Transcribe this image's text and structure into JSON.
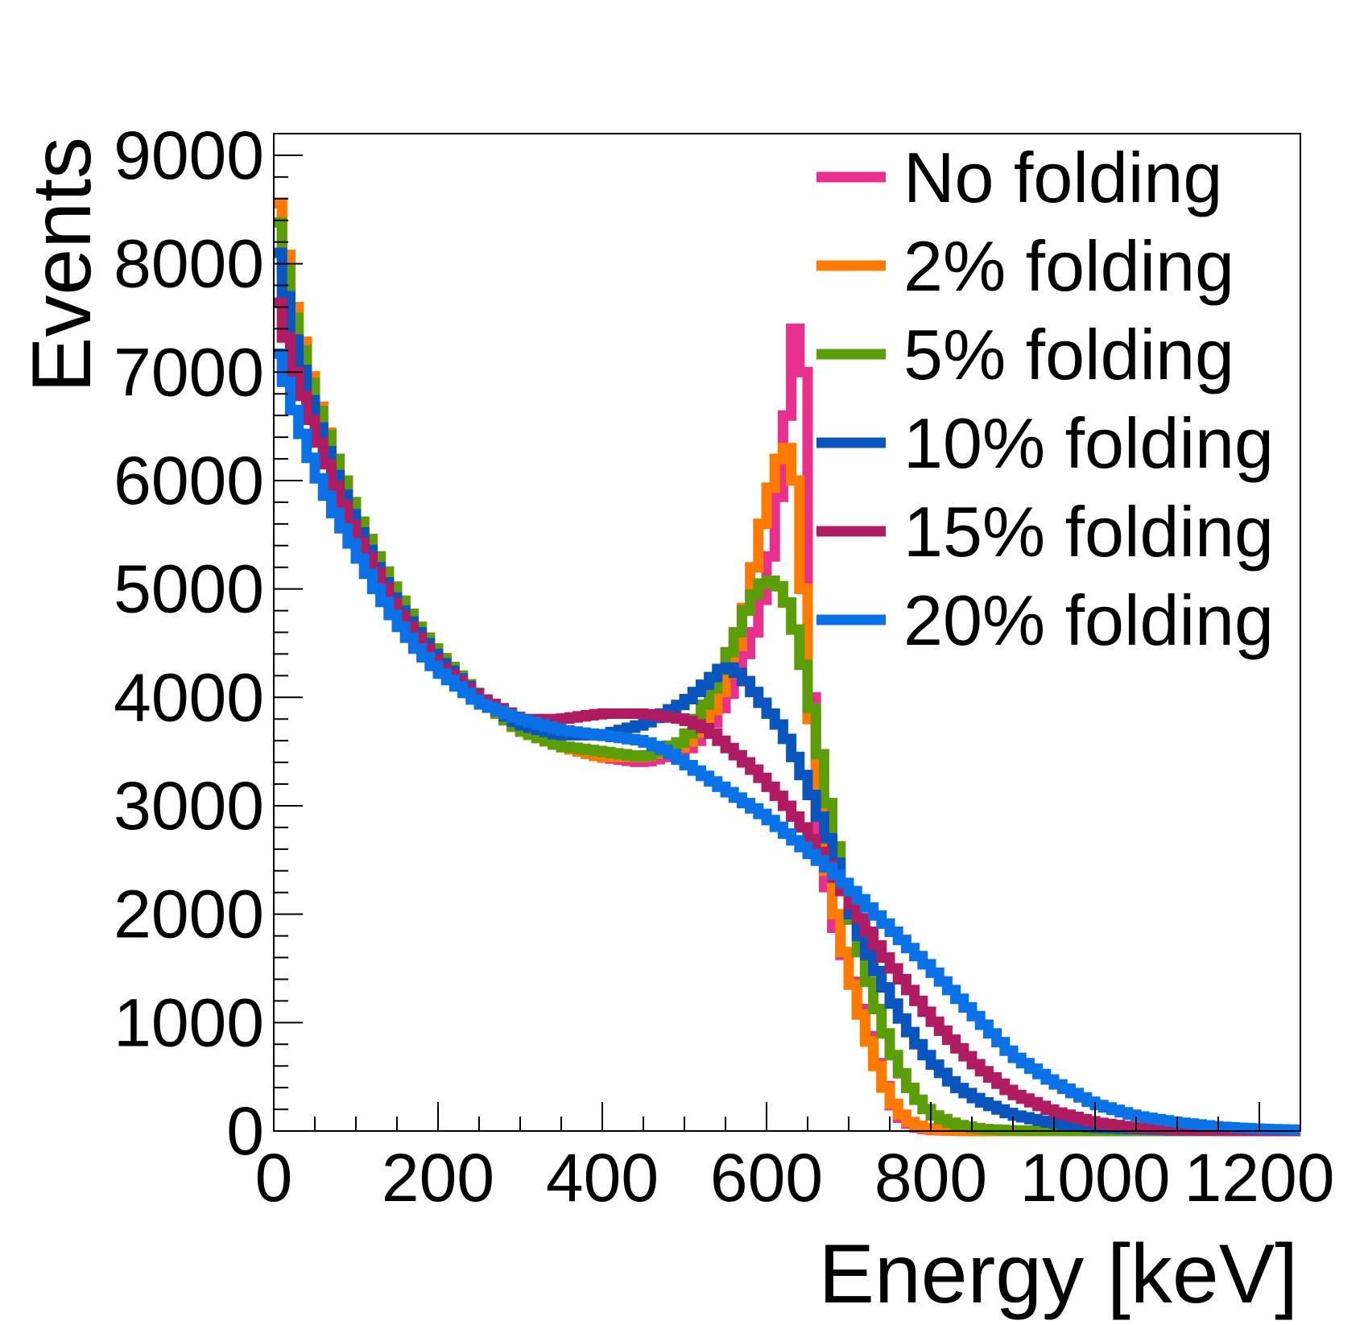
{
  "chart_data": {
    "type": "line",
    "xlabel": "Energy [keV]",
    "ylabel": "Events",
    "xlim": [
      0,
      1250
    ],
    "ylim": [
      0,
      9200
    ],
    "x_ticks": [
      0,
      200,
      400,
      600,
      800,
      1000,
      1200
    ],
    "x_tick_labels": [
      "0",
      "200",
      "400",
      "600",
      "800",
      "1000",
      "1200"
    ],
    "y_ticks": [
      0,
      1000,
      2000,
      3000,
      4000,
      5000,
      6000,
      7000,
      8000,
      9000
    ],
    "y_tick_labels": [
      "0",
      "1000",
      "2000",
      "3000",
      "4000",
      "5000",
      "6000",
      "7000",
      "8000",
      "9000"
    ],
    "grid": false,
    "legend_position": "top-right",
    "series": [
      {
        "name": "No folding",
        "color": "#e8308e",
        "x": [
          0,
          25,
          50,
          75,
          100,
          125,
          150,
          175,
          200,
          250,
          300,
          350,
          400,
          450,
          500,
          530,
          560,
          590,
          610,
          620,
          630,
          635,
          640,
          645,
          650,
          660,
          680,
          700,
          720,
          740,
          760,
          780,
          800,
          850,
          900,
          1000,
          1100,
          1250
        ],
        "values": [
          8800,
          7600,
          6800,
          6200,
          5700,
          5300,
          4950,
          4650,
          4400,
          4000,
          3700,
          3550,
          3450,
          3400,
          3500,
          3700,
          4100,
          4700,
          5500,
          6200,
          7000,
          7400,
          7700,
          7000,
          5000,
          3000,
          2000,
          1500,
          1000,
          500,
          150,
          40,
          10,
          0,
          0,
          0,
          0,
          0
        ]
      },
      {
        "name": "2% folding",
        "color": "#ff7a00",
        "x": [
          0,
          25,
          50,
          75,
          100,
          125,
          150,
          175,
          200,
          250,
          300,
          350,
          400,
          450,
          500,
          530,
          560,
          580,
          600,
          615,
          625,
          635,
          645,
          655,
          670,
          690,
          710,
          730,
          750,
          770,
          790,
          810,
          850,
          900,
          1000,
          1250
        ],
        "values": [
          8800,
          7600,
          6800,
          6200,
          5700,
          5300,
          4950,
          4650,
          4400,
          4000,
          3700,
          3550,
          3450,
          3450,
          3550,
          3800,
          4300,
          5000,
          5800,
          6200,
          6300,
          6000,
          5000,
          3800,
          2600,
          1800,
          1200,
          700,
          300,
          100,
          30,
          10,
          0,
          0,
          0,
          0
        ]
      },
      {
        "name": "5% folding",
        "color": "#5c9e0a",
        "x": [
          0,
          25,
          50,
          75,
          100,
          125,
          150,
          175,
          200,
          250,
          300,
          350,
          400,
          450,
          500,
          530,
          560,
          580,
          600,
          620,
          640,
          660,
          680,
          700,
          720,
          740,
          760,
          780,
          800,
          830,
          860,
          900,
          1000,
          1250
        ],
        "values": [
          8600,
          7500,
          6750,
          6200,
          5700,
          5300,
          4950,
          4650,
          4400,
          4000,
          3700,
          3550,
          3500,
          3450,
          3600,
          4000,
          4500,
          4900,
          5100,
          5000,
          4500,
          3700,
          2800,
          2100,
          1500,
          1000,
          600,
          330,
          160,
          60,
          20,
          5,
          0,
          0
        ]
      },
      {
        "name": "10% folding",
        "color": "#0a55be",
        "x": [
          0,
          25,
          50,
          75,
          100,
          125,
          150,
          175,
          200,
          250,
          300,
          350,
          400,
          450,
          500,
          530,
          550,
          570,
          600,
          620,
          650,
          680,
          700,
          720,
          740,
          760,
          780,
          800,
          830,
          860,
          900,
          950,
          1000,
          1100,
          1250
        ],
        "values": [
          8300,
          7300,
          6600,
          6050,
          5600,
          5200,
          4850,
          4600,
          4350,
          4000,
          3750,
          3650,
          3650,
          3750,
          3950,
          4150,
          4300,
          4200,
          3900,
          3700,
          3200,
          2600,
          2100,
          1700,
          1400,
          1100,
          850,
          650,
          420,
          280,
          150,
          70,
          30,
          5,
          0
        ]
      },
      {
        "name": "15% folding",
        "color": "#b01c62",
        "x": [
          0,
          25,
          50,
          75,
          100,
          125,
          150,
          175,
          200,
          250,
          300,
          350,
          400,
          450,
          500,
          530,
          560,
          590,
          620,
          650,
          680,
          700,
          720,
          740,
          760,
          780,
          800,
          830,
          860,
          900,
          950,
          1000,
          1050,
          1100,
          1150,
          1250
        ],
        "values": [
          7800,
          7000,
          6450,
          5950,
          5500,
          5150,
          4800,
          4550,
          4300,
          4000,
          3800,
          3800,
          3850,
          3850,
          3800,
          3700,
          3500,
          3300,
          3050,
          2750,
          2400,
          2150,
          1900,
          1650,
          1450,
          1250,
          1050,
          800,
          580,
          350,
          180,
          80,
          30,
          10,
          3,
          0
        ]
      },
      {
        "name": "20% folding",
        "color": "#0a72e6",
        "x": [
          0,
          25,
          50,
          75,
          100,
          125,
          150,
          175,
          200,
          250,
          300,
          350,
          400,
          450,
          480,
          520,
          560,
          600,
          640,
          680,
          720,
          760,
          800,
          850,
          900,
          950,
          1000,
          1050,
          1100,
          1150,
          1200,
          1250
        ],
        "values": [
          7300,
          6650,
          6100,
          5700,
          5350,
          5000,
          4700,
          4450,
          4250,
          3950,
          3800,
          3700,
          3650,
          3600,
          3500,
          3300,
          3100,
          2900,
          2650,
          2400,
          2100,
          1800,
          1500,
          1100,
          700,
          450,
          250,
          140,
          80,
          40,
          20,
          10
        ]
      }
    ]
  }
}
